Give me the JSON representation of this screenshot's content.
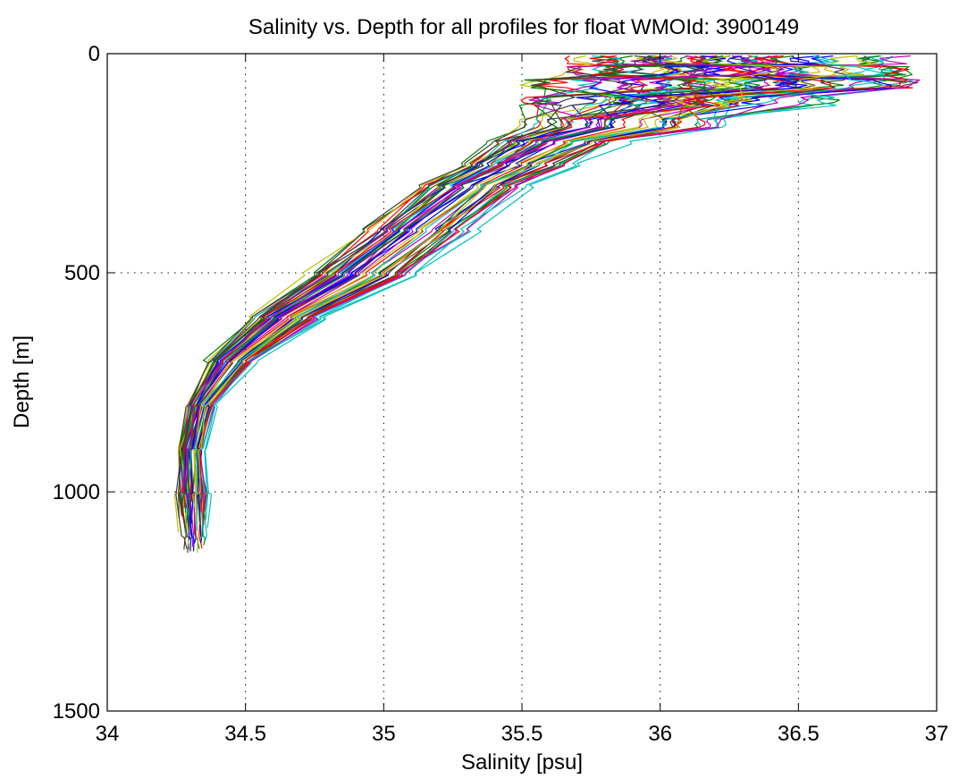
{
  "chart_data": {
    "type": "line",
    "title": "Salinity vs. Depth for all profiles for float WMOId: 3900149",
    "xlabel": "Salinity [psu]",
    "ylabel": "Depth [m]",
    "xlim": [
      34,
      37
    ],
    "ylim": [
      0,
      1500
    ],
    "y_reversed": true,
    "grid": true,
    "x_ticks": [
      "34",
      "34.5",
      "35",
      "35.5",
      "36",
      "36.5",
      "37"
    ],
    "y_ticks": [
      "0",
      "500",
      "1000",
      "1500"
    ],
    "colors": [
      "#0000ff",
      "#008000",
      "#ff0000",
      "#00bfbf",
      "#bf00bf",
      "#bfbf00",
      "#404040"
    ],
    "profile_count": 56,
    "depths": [
      5,
      30,
      60,
      100,
      150,
      200,
      250,
      300,
      400,
      500,
      600,
      700,
      800,
      900,
      1000,
      1100
    ],
    "envelope": {
      "salinity_min": [
        35.7,
        35.7,
        35.55,
        35.55,
        35.45,
        35.35,
        35.25,
        35.1,
        34.9,
        34.7,
        34.5,
        34.35,
        34.28,
        34.25,
        34.25,
        34.27
      ],
      "salinity_max": [
        36.85,
        36.88,
        36.88,
        36.6,
        36.3,
        35.9,
        35.72,
        35.55,
        35.35,
        35.15,
        34.8,
        34.55,
        34.4,
        34.36,
        34.37,
        34.37
      ],
      "salinity_median": [
        36.1,
        36.2,
        36.25,
        36.0,
        35.85,
        35.65,
        35.5,
        35.35,
        35.15,
        34.95,
        34.7,
        34.45,
        34.33,
        34.3,
        34.31,
        34.32
      ]
    }
  }
}
